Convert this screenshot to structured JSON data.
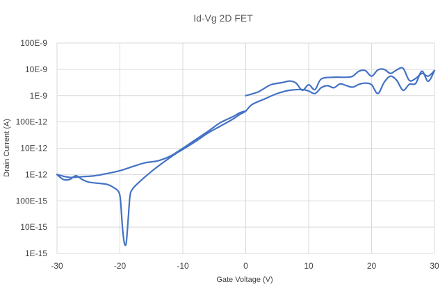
{
  "chart_data": {
    "type": "line",
    "title": "Id-Vg 2D FET",
    "xlabel": "Gate Voltage (V)",
    "ylabel": "Drain Current (A)",
    "xlim": [
      -30,
      30
    ],
    "x_ticks": [
      -30,
      -20,
      -10,
      0,
      10,
      20,
      30
    ],
    "y_scale": "log",
    "ylim": [
      1e-15,
      1e-07
    ],
    "y_ticks": [
      1e-15,
      1e-14,
      1e-13,
      1e-12,
      1e-11,
      1e-10,
      1e-09,
      1e-08,
      1e-07
    ],
    "y_tick_labels": [
      "1E-15",
      "10E-15",
      "100E-15",
      "1E-12",
      "10E-12",
      "100E-12",
      "1E-9",
      "10E-9",
      "100E-9"
    ],
    "grid": true,
    "legend": "none",
    "colors": {
      "series": "#4472c4",
      "grid": "#d9d9d9",
      "text": "#404040",
      "title": "#595959"
    },
    "series": [
      {
        "values": [
          [
            -30,
            1e-12
          ],
          [
            -29,
            6.5e-13
          ],
          [
            -28,
            6.5e-13
          ],
          [
            -27,
            9e-13
          ],
          [
            -26,
            6.5e-13
          ],
          [
            -25,
            5.2e-13
          ],
          [
            -24,
            4.8e-13
          ],
          [
            -22,
            4.2e-13
          ],
          [
            -21,
            3.2e-13
          ],
          [
            -20.2,
            2.2e-13
          ],
          [
            -19.9,
            1e-13
          ],
          [
            -19.6,
            1e-14
          ],
          [
            -19.3,
            2.5e-15
          ],
          [
            -19.0,
            2.5e-15
          ],
          [
            -18.7,
            1.8e-14
          ],
          [
            -18.4,
            1.5e-13
          ],
          [
            -18,
            2.8e-13
          ],
          [
            -17,
            5e-13
          ],
          [
            -15,
            1.3e-12
          ],
          [
            -13,
            3e-12
          ],
          [
            -11,
            6.5e-12
          ],
          [
            -10,
            9e-12
          ],
          [
            -8,
            1.8e-11
          ],
          [
            -6,
            3.8e-11
          ],
          [
            -4,
            7e-11
          ],
          [
            -2,
            1.3e-10
          ],
          [
            -1,
            1.9e-10
          ],
          [
            0,
            2.6e-10
          ],
          [
            1,
            4.6e-10
          ],
          [
            3,
            7.5e-10
          ],
          [
            5,
            1.2e-09
          ],
          [
            7,
            1.6e-09
          ],
          [
            9,
            1.7e-09
          ],
          [
            10,
            1.5e-09
          ],
          [
            11,
            1.2e-09
          ],
          [
            12,
            2e-09
          ],
          [
            13,
            2.4e-09
          ],
          [
            14,
            2e-09
          ],
          [
            15,
            2.8e-09
          ],
          [
            16,
            2.4e-09
          ],
          [
            17,
            2.1e-09
          ],
          [
            18,
            2.7e-09
          ],
          [
            19,
            3e-09
          ],
          [
            20,
            2.6e-09
          ],
          [
            21,
            1.2e-09
          ],
          [
            22,
            3.2e-09
          ],
          [
            23,
            5.5e-09
          ],
          [
            24,
            3.8e-09
          ],
          [
            25,
            1.6e-09
          ],
          [
            26,
            2.7e-09
          ],
          [
            27,
            2.9e-09
          ],
          [
            28,
            8.5e-09
          ],
          [
            29,
            3.5e-09
          ],
          [
            30,
            9e-09
          ]
        ]
      },
      {
        "values": [
          [
            0,
            1e-09
          ],
          [
            2,
            1.4e-09
          ],
          [
            4,
            2.6e-09
          ],
          [
            6,
            3.2e-09
          ],
          [
            7,
            3.6e-09
          ],
          [
            8,
            3e-09
          ],
          [
            9,
            1.6e-09
          ],
          [
            10,
            2.6e-09
          ],
          [
            11,
            1.7e-09
          ],
          [
            12,
            4.3e-09
          ],
          [
            14,
            5e-09
          ],
          [
            16,
            5e-09
          ],
          [
            17,
            5.5e-09
          ],
          [
            18,
            8.5e-09
          ],
          [
            19,
            9e-09
          ],
          [
            20,
            5.5e-09
          ],
          [
            21,
            9.5e-09
          ],
          [
            22,
            1e-08
          ],
          [
            23,
            7e-09
          ],
          [
            24,
            9.5e-09
          ],
          [
            25,
            1.1e-08
          ],
          [
            26,
            3.8e-09
          ],
          [
            27,
            4.5e-09
          ],
          [
            28,
            7e-09
          ],
          [
            29,
            5.5e-09
          ],
          [
            30,
            9e-09
          ]
        ]
      },
      {
        "values": [
          [
            -30,
            1e-12
          ],
          [
            -28,
            7.8e-13
          ],
          [
            -26,
            8.3e-13
          ],
          [
            -24,
            9e-13
          ],
          [
            -22,
            1.1e-12
          ],
          [
            -20,
            1.4e-12
          ],
          [
            -18,
            2e-12
          ],
          [
            -16,
            2.8e-12
          ],
          [
            -14,
            3.3e-12
          ],
          [
            -12,
            5e-12
          ],
          [
            -10,
            1e-11
          ],
          [
            -8,
            2.1e-11
          ],
          [
            -6,
            4.4e-11
          ],
          [
            -4,
            9.5e-11
          ],
          [
            -2,
            1.6e-10
          ],
          [
            -1,
            2.2e-10
          ],
          [
            0,
            2.6e-10
          ]
        ]
      }
    ]
  }
}
